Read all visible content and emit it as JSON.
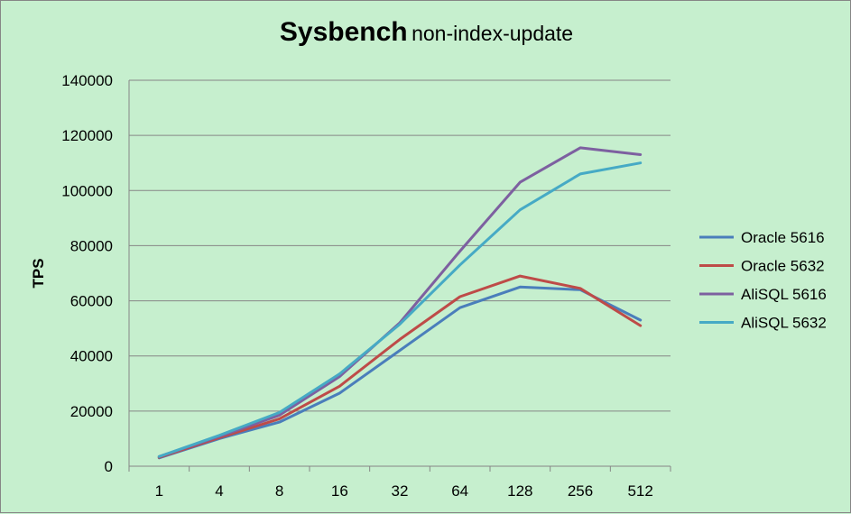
{
  "chart_data": {
    "type": "line",
    "title": "Sysbench",
    "subtitle": "non-index-update",
    "xlabel": "",
    "ylabel": "TPS",
    "categories": [
      "1",
      "4",
      "8",
      "16",
      "32",
      "64",
      "128",
      "256",
      "512"
    ],
    "ylim": [
      0,
      140000
    ],
    "yticks": [
      0,
      20000,
      40000,
      60000,
      80000,
      100000,
      120000,
      140000
    ],
    "grid": true,
    "legend_position": "right",
    "series": [
      {
        "name": "Oracle 5616",
        "color": "#4a7ebb",
        "values": [
          3000,
          10000,
          16000,
          26500,
          42000,
          57500,
          65000,
          64000,
          53000
        ]
      },
      {
        "name": "Oracle 5632",
        "color": "#be4b48",
        "values": [
          3200,
          10300,
          17200,
          29000,
          46000,
          61500,
          69000,
          64500,
          51000
        ]
      },
      {
        "name": "AliSQL 5616",
        "color": "#7d60a0",
        "values": [
          3500,
          10800,
          18500,
          32500,
          52000,
          78000,
          103000,
          115500,
          113000
        ]
      },
      {
        "name": "AliSQL 5632",
        "color": "#46aac5",
        "values": [
          3500,
          11200,
          19500,
          33500,
          51500,
          73000,
          93000,
          106000,
          110000
        ]
      }
    ]
  }
}
